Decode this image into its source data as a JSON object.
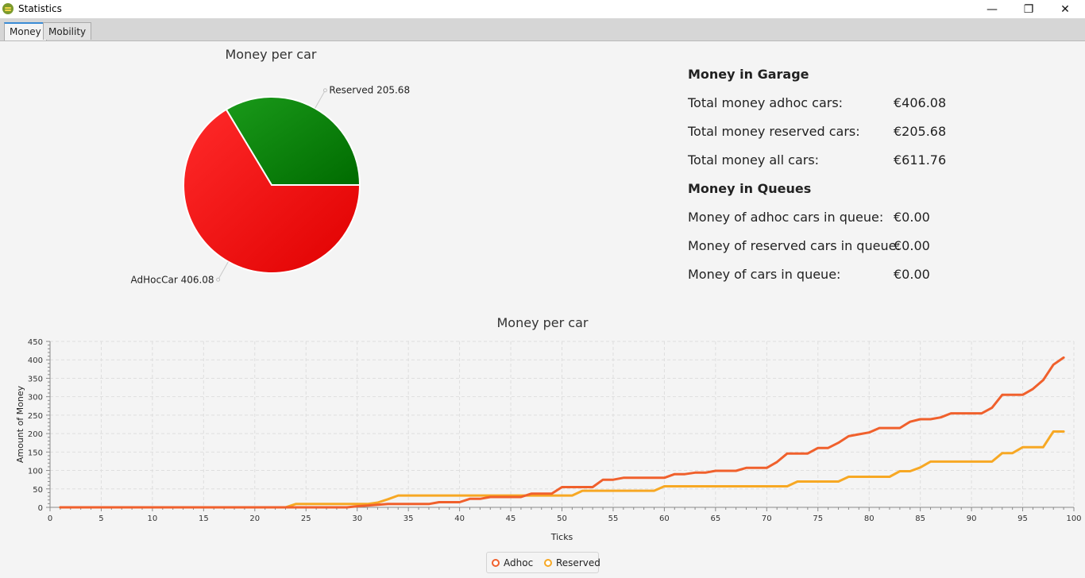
{
  "window": {
    "title": "Statistics",
    "app_icon": "garage-app-icon",
    "controls": {
      "minimize": "—",
      "maximize": "❐",
      "close": "✕"
    }
  },
  "tabs": [
    {
      "label": "Money",
      "active": true
    },
    {
      "label": "Mobility",
      "active": false
    }
  ],
  "stats": {
    "garage_heading": "Money in Garage",
    "queues_heading": "Money in Queues",
    "rows_garage": [
      {
        "label": "Total money adhoc cars:",
        "value": "€406.08"
      },
      {
        "label": "Total money reserved cars:",
        "value": "€205.68"
      },
      {
        "label": "Total money all cars:",
        "value": "€611.76"
      }
    ],
    "rows_queue": [
      {
        "label": "Money of adhoc cars in queue:",
        "value": "€0.00"
      },
      {
        "label": "Money of reserved cars in queue:",
        "value": "€0.00"
      },
      {
        "label": "Money of cars in queue:",
        "value": "€0.00"
      }
    ]
  },
  "colors": {
    "adhoc_pie": "#e60000",
    "reserved_pie": "#0a7a0a",
    "adhoc_line": "#f0602c",
    "reserved_line": "#f7a824",
    "grid": "#dedede"
  },
  "chart_data": [
    {
      "type": "pie",
      "title": "Money per car",
      "slices": [
        {
          "label": "Reserved 205.68",
          "name": "Reserved",
          "value": 205.68
        },
        {
          "label": "AdHocCar 406.08",
          "name": "AdHocCar",
          "value": 406.08
        }
      ]
    },
    {
      "type": "line",
      "title": "Money per car",
      "xlabel": "Ticks",
      "ylabel": "Amount of Money",
      "xlim": [
        0,
        100
      ],
      "ylim": [
        0,
        450
      ],
      "xticks": [
        0,
        5,
        10,
        15,
        20,
        25,
        30,
        35,
        40,
        45,
        50,
        55,
        60,
        65,
        70,
        75,
        80,
        85,
        90,
        95,
        100
      ],
      "yticks": [
        0,
        50,
        100,
        150,
        200,
        250,
        300,
        350,
        400,
        450
      ],
      "grid": true,
      "legend_position": "bottom",
      "series": [
        {
          "name": "Adhoc",
          "points": [
            [
              1,
              0
            ],
            [
              29,
              0
            ],
            [
              30,
              3
            ],
            [
              31,
              5
            ],
            [
              32,
              7
            ],
            [
              33,
              9
            ],
            [
              34,
              9
            ],
            [
              35,
              9
            ],
            [
              36,
              9
            ],
            [
              37,
              9
            ],
            [
              38,
              14
            ],
            [
              39,
              14
            ],
            [
              40,
              14
            ],
            [
              41,
              23
            ],
            [
              42,
              23
            ],
            [
              43,
              28
            ],
            [
              44,
              28
            ],
            [
              45,
              28
            ],
            [
              46,
              28
            ],
            [
              47,
              37
            ],
            [
              48,
              37
            ],
            [
              49,
              37
            ],
            [
              50,
              55
            ],
            [
              51,
              55
            ],
            [
              52,
              55
            ],
            [
              53,
              55
            ],
            [
              54,
              75
            ],
            [
              55,
              75
            ],
            [
              56,
              80
            ],
            [
              57,
              80
            ],
            [
              58,
              80
            ],
            [
              59,
              80
            ],
            [
              60,
              80
            ],
            [
              61,
              90
            ],
            [
              62,
              90
            ],
            [
              63,
              94
            ],
            [
              64,
              94
            ],
            [
              65,
              99
            ],
            [
              66,
              99
            ],
            [
              67,
              99
            ],
            [
              68,
              107
            ],
            [
              69,
              107
            ],
            [
              70,
              107
            ],
            [
              71,
              123
            ],
            [
              72,
              146
            ],
            [
              73,
              146
            ],
            [
              74,
              146
            ],
            [
              75,
              161
            ],
            [
              76,
              161
            ],
            [
              77,
              175
            ],
            [
              78,
              193
            ],
            [
              79,
              198
            ],
            [
              80,
              203
            ],
            [
              81,
              215
            ],
            [
              82,
              215
            ],
            [
              83,
              215
            ],
            [
              84,
              232
            ],
            [
              85,
              239
            ],
            [
              86,
              239
            ],
            [
              87,
              244
            ],
            [
              88,
              255
            ],
            [
              89,
              255
            ],
            [
              90,
              255
            ],
            [
              91,
              255
            ],
            [
              92,
              270
            ],
            [
              93,
              305
            ],
            [
              94,
              305
            ],
            [
              95,
              305
            ],
            [
              96,
              321
            ],
            [
              97,
              345
            ],
            [
              98,
              387
            ],
            [
              99,
              406.08
            ]
          ]
        },
        {
          "name": "Reserved",
          "points": [
            [
              1,
              0
            ],
            [
              23,
              0
            ],
            [
              24,
              9
            ],
            [
              25,
              9
            ],
            [
              26,
              9
            ],
            [
              27,
              9
            ],
            [
              28,
              9
            ],
            [
              29,
              9
            ],
            [
              30,
              9
            ],
            [
              31,
              9
            ],
            [
              32,
              13
            ],
            [
              33,
              22
            ],
            [
              34,
              32
            ],
            [
              35,
              32
            ],
            [
              36,
              32
            ],
            [
              37,
              32
            ],
            [
              38,
              32
            ],
            [
              39,
              32
            ],
            [
              40,
              32
            ],
            [
              41,
              32
            ],
            [
              42,
              32
            ],
            [
              43,
              32
            ],
            [
              44,
              32
            ],
            [
              45,
              32
            ],
            [
              46,
              32
            ],
            [
              47,
              32
            ],
            [
              48,
              32
            ],
            [
              49,
              32
            ],
            [
              50,
              32
            ],
            [
              51,
              32
            ],
            [
              52,
              45
            ],
            [
              53,
              45
            ],
            [
              54,
              45
            ],
            [
              55,
              45
            ],
            [
              56,
              45
            ],
            [
              57,
              45
            ],
            [
              58,
              45
            ],
            [
              59,
              45
            ],
            [
              60,
              57
            ],
            [
              61,
              57
            ],
            [
              62,
              57
            ],
            [
              63,
              57
            ],
            [
              64,
              57
            ],
            [
              65,
              57
            ],
            [
              66,
              57
            ],
            [
              67,
              57
            ],
            [
              68,
              57
            ],
            [
              69,
              57
            ],
            [
              70,
              57
            ],
            [
              71,
              57
            ],
            [
              72,
              57
            ],
            [
              73,
              70
            ],
            [
              74,
              70
            ],
            [
              75,
              70
            ],
            [
              76,
              70
            ],
            [
              77,
              70
            ],
            [
              78,
              83
            ],
            [
              79,
              83
            ],
            [
              80,
              83
            ],
            [
              81,
              83
            ],
            [
              82,
              83
            ],
            [
              83,
              98
            ],
            [
              84,
              98
            ],
            [
              85,
              108
            ],
            [
              86,
              124
            ],
            [
              87,
              124
            ],
            [
              88,
              124
            ],
            [
              89,
              124
            ],
            [
              90,
              124
            ],
            [
              91,
              124
            ],
            [
              92,
              124
            ],
            [
              93,
              147
            ],
            [
              94,
              147
            ],
            [
              95,
              163
            ],
            [
              96,
              163
            ],
            [
              97,
              163
            ],
            [
              98,
              205.68
            ],
            [
              99,
              205.68
            ]
          ]
        }
      ]
    }
  ]
}
